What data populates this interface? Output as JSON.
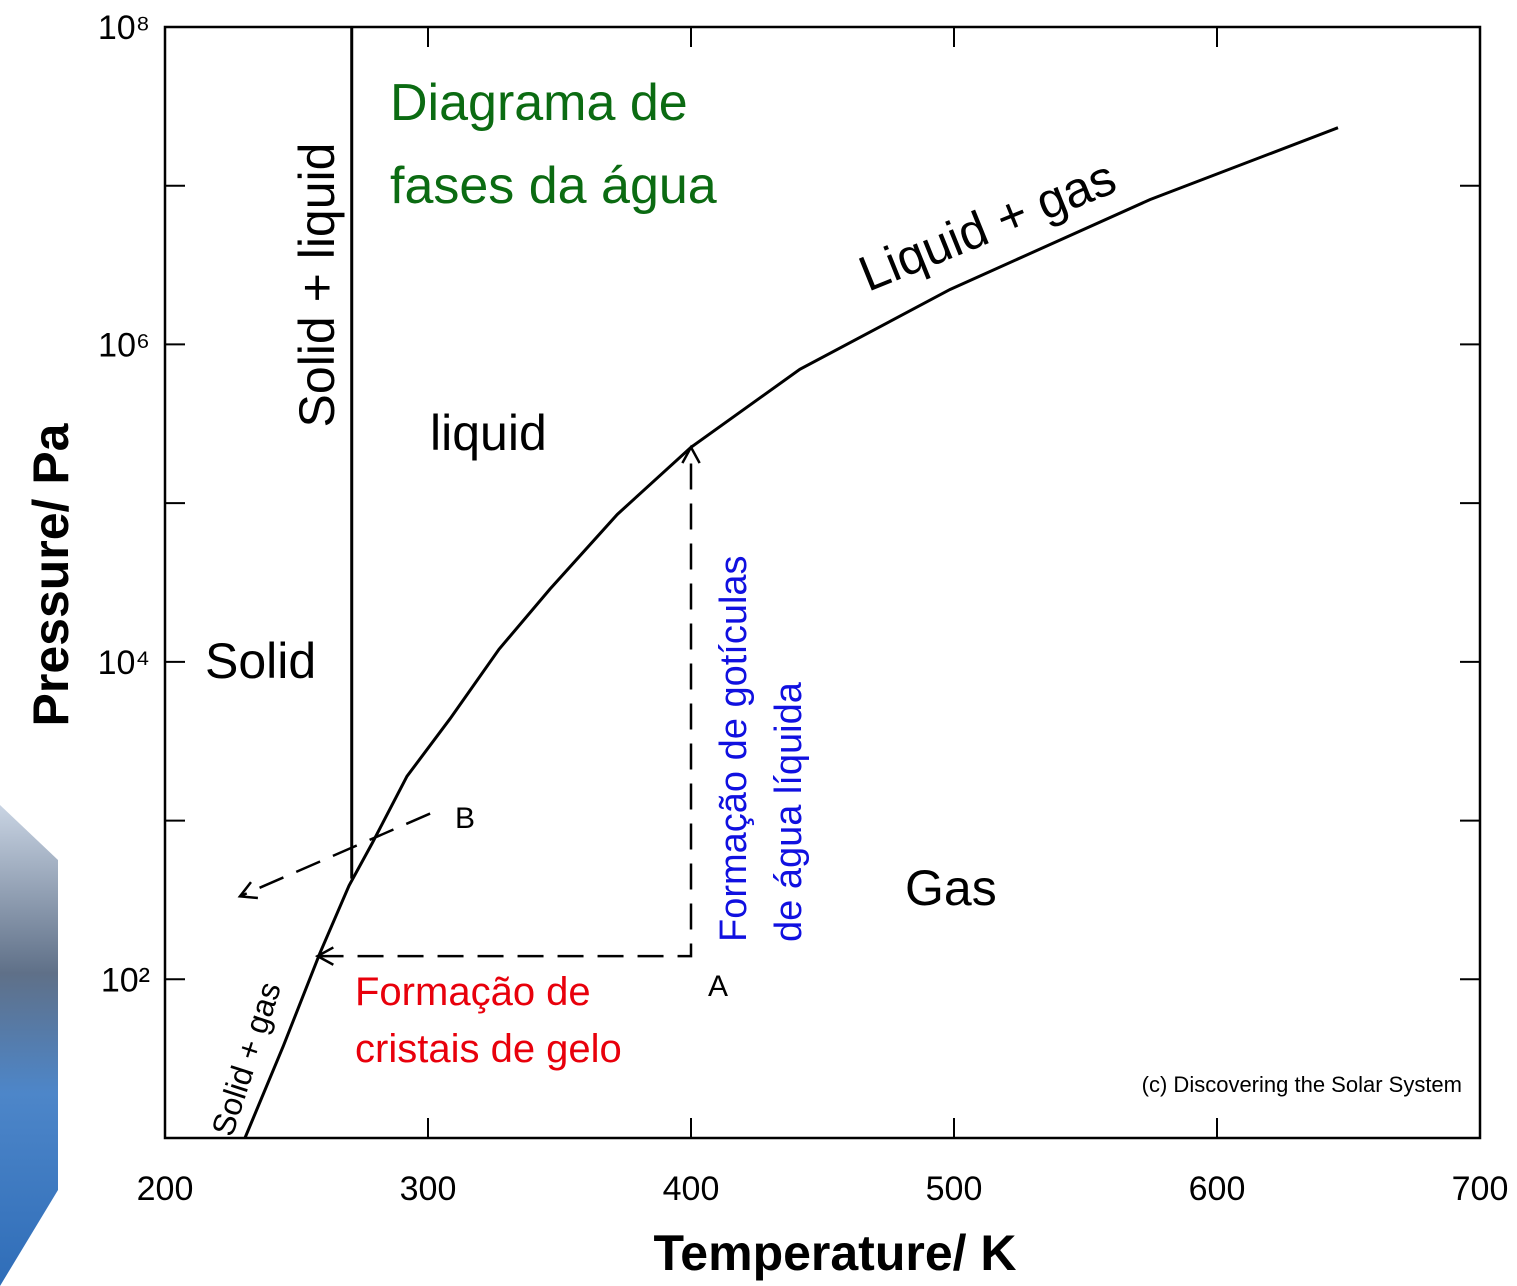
{
  "chart_data": {
    "type": "line",
    "title": [
      "Diagrama de",
      "fases da água"
    ],
    "title_color": "#0b6b12",
    "xlabel": "Temperature/ K",
    "ylabel": "Pressure/ Pa",
    "xlim": [
      200,
      700
    ],
    "xticks": [
      200,
      300,
      400,
      500,
      600,
      700
    ],
    "ylim": [
      10,
      100000000
    ],
    "log_y": true,
    "grid": false,
    "yticks": [
      {
        "value": 100,
        "label": "10²"
      },
      {
        "value": 1000,
        "label": null
      },
      {
        "value": 10000,
        "label": "10⁴"
      },
      {
        "value": 100000,
        "label": null
      },
      {
        "value": 1000000,
        "label": "10⁶"
      },
      {
        "value": 10000000,
        "label": null
      },
      {
        "value": 100000000,
        "label": "10⁸"
      }
    ],
    "series": [
      {
        "color": "#000000",
        "style": "solid",
        "x": [
          230.4,
          245,
          258.9,
          270,
          278.7,
          292,
          308.4,
          327,
          346.4,
          372,
          400,
          441.4,
          498.5,
          574.5,
          646
        ],
        "values": [
          10,
          38,
          146,
          390,
          716,
          1900,
          4385,
          12000,
          28780,
          85000,
          225000,
          697000,
          2220000,
          8170000,
          23200000
        ]
      },
      {
        "color": "#000000",
        "style": "solid",
        "x": [
          271,
          271
        ],
        "values": [
          431,
          100000000
        ]
      },
      {
        "color": "#000000",
        "style": "dashed",
        "arrow_start": true,
        "arrow_end": true,
        "x": [
          258,
          400,
          400
        ],
        "values": [
          140,
          140,
          225000
        ]
      },
      {
        "color": "#000000",
        "style": "dashed",
        "arrow_end": true,
        "x": [
          300.8,
          228.5
        ],
        "values": [
          1107,
          333
        ]
      }
    ],
    "annotations": [
      {
        "text": "Solid + liquid",
        "color": "#000000"
      },
      {
        "text": "liquid",
        "color": "#000000"
      },
      {
        "text": "Solid",
        "color": "#000000"
      },
      {
        "text": "Gas",
        "color": "#000000"
      },
      {
        "text": "Liquid + gas",
        "color": "#000000"
      },
      {
        "text": "Solid + gas",
        "color": "#000000"
      },
      {
        "text": "B",
        "color": "#000000"
      },
      {
        "text": "A",
        "color": "#000000"
      },
      {
        "text": [
          "Formação de",
          "cristais de gelo"
        ],
        "color": "#e8000b"
      },
      {
        "text": [
          "Formação de gotículas",
          "de água líquida"
        ],
        "color": "#1010e0"
      },
      {
        "text": "(c) Discovering the Solar System",
        "color": "#000000"
      }
    ]
  }
}
